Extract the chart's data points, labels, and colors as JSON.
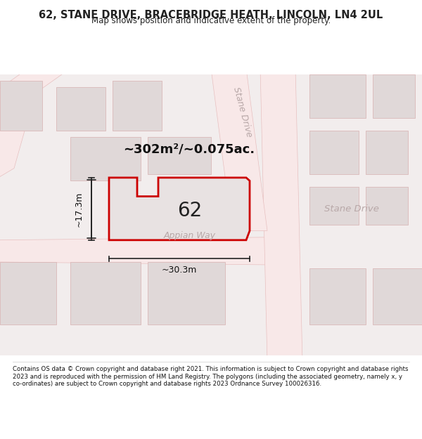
{
  "title": "62, STANE DRIVE, BRACEBRIDGE HEATH, LINCOLN, LN4 2UL",
  "subtitle": "Map shows position and indicative extent of the property.",
  "footer": "Contains OS data © Crown copyright and database right 2021. This information is subject to Crown copyright and database rights 2023 and is reproduced with the permission of HM Land Registry. The polygons (including the associated geometry, namely x, y co-ordinates) are subject to Crown copyright and database rights 2023 Ordnance Survey 100026316.",
  "area_label": "~302m²/~0.075ac.",
  "width_label": "~30.3m",
  "height_label": "~17.3m",
  "plot_number": "62",
  "road_label_1": "Stane Drive",
  "road_label_2": "Stane Drive",
  "road_label_3": "Appian Way",
  "bg_color": "#f5f0f0",
  "map_bg": "#f0eaea",
  "road_color": "#f5c0c0",
  "road_fill": "#e8d8d8",
  "block_color": "#d8d0d0",
  "block_fill": "#e0dada",
  "highlight_fill": "#e8e4e4",
  "plot_outline_color": "#cc0000",
  "plot_fill": "#eae6e6",
  "dim_line_color": "#222222",
  "text_color": "#222222",
  "road_text_color": "#b0a0a0"
}
